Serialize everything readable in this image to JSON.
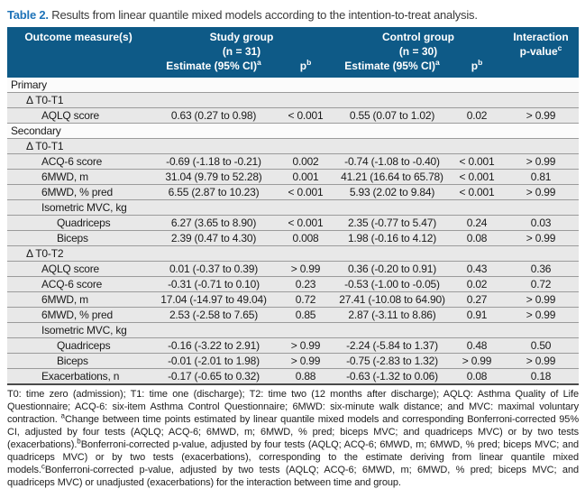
{
  "title": {
    "label": "Table 2.",
    "text": " Results from linear quantile mixed models according to the intention-to-treat analysis."
  },
  "colors": {
    "header_bg": "#0e5a87",
    "title_accent": "#1e73b8",
    "row_bg": "#e8e8e8",
    "section_row_bg": "#fbfbfb",
    "row_divider": "#9b9b9b",
    "table_bottom_border": "#4a4a4a",
    "header_text": "#ffffff"
  },
  "table": {
    "header": {
      "outcome": "Outcome measure(s)",
      "study_group": "Study group",
      "study_n": "(n = 31)",
      "control_group": "Control group",
      "control_n": "(n = 30)",
      "interaction_line1": "Interaction",
      "interaction_line2": "p-value",
      "interaction_sup": "c",
      "estimate_label": "Estimate (95% CI)",
      "estimate_sup": "a",
      "p_label": "p",
      "p_sup": "b"
    },
    "rows": [
      {
        "type": "section",
        "indent": 0,
        "label": "Primary",
        "est1": "",
        "p1": "",
        "est2": "",
        "p2": "",
        "pint": ""
      },
      {
        "type": "sub",
        "indent": 1,
        "label": "Δ T0-T1",
        "est1": "",
        "p1": "",
        "est2": "",
        "p2": "",
        "pint": ""
      },
      {
        "type": "data",
        "indent": 2,
        "label": "AQLQ score",
        "est1": "0.63 (0.27 to 0.98)",
        "p1": "< 0.001",
        "est2": "0.55 (0.07 to 1.02)",
        "p2": "0.02",
        "pint": "> 0.99"
      },
      {
        "type": "section",
        "indent": 0,
        "label": "Secondary",
        "est1": "",
        "p1": "",
        "est2": "",
        "p2": "",
        "pint": ""
      },
      {
        "type": "sub",
        "indent": 1,
        "label": "Δ T0-T1",
        "est1": "",
        "p1": "",
        "est2": "",
        "p2": "",
        "pint": ""
      },
      {
        "type": "data",
        "indent": 2,
        "label": "ACQ-6 score",
        "est1": "-0.69 (-1.18 to -0.21)",
        "p1": "0.002",
        "est2": "-0.74 (-1.08 to -0.40)",
        "p2": "< 0.001",
        "pint": "> 0.99"
      },
      {
        "type": "data",
        "indent": 2,
        "label": "6MWD, m",
        "est1": "31.04 (9.79 to 52.28)",
        "p1": "0.001",
        "est2": "41.21 (16.64 to 65.78)",
        "p2": "< 0.001",
        "pint": "0.81"
      },
      {
        "type": "data",
        "indent": 2,
        "label": "6MWD, % pred",
        "est1": "6.55 (2.87 to 10.23)",
        "p1": "< 0.001",
        "est2": "5.93 (2.02 to 9.84)",
        "p2": "< 0.001",
        "pint": "> 0.99"
      },
      {
        "type": "sub",
        "indent": 2,
        "label": "Isometric MVC, kg",
        "est1": "",
        "p1": "",
        "est2": "",
        "p2": "",
        "pint": ""
      },
      {
        "type": "data",
        "indent": 3,
        "label": "Quadriceps",
        "est1": "6.27 (3.65 to 8.90)",
        "p1": "< 0.001",
        "est2": "2.35 (-0.77 to 5.47)",
        "p2": "0.24",
        "pint": "0.03"
      },
      {
        "type": "data",
        "indent": 3,
        "label": "Biceps",
        "est1": "2.39 (0.47 to 4.30)",
        "p1": "0.008",
        "est2": "1.98 (-0.16 to 4.12)",
        "p2": "0.08",
        "pint": "> 0.99"
      },
      {
        "type": "sub",
        "indent": 1,
        "label": "Δ T0-T2",
        "est1": "",
        "p1": "",
        "est2": "",
        "p2": "",
        "pint": ""
      },
      {
        "type": "data",
        "indent": 2,
        "label": "AQLQ score",
        "est1": "0.01 (-0.37 to 0.39)",
        "p1": "> 0.99",
        "est2": "0.36 (-0.20 to 0.91)",
        "p2": "0.43",
        "pint": "0.36"
      },
      {
        "type": "data",
        "indent": 2,
        "label": "ACQ-6 score",
        "est1": "-0.31 (-0.71 to 0.10)",
        "p1": "0.23",
        "est2": "-0.53 (-1.00 to -0.05)",
        "p2": "0.02",
        "pint": "0.72"
      },
      {
        "type": "data",
        "indent": 2,
        "label": "6MWD, m",
        "est1": "17.04 (-14.97 to 49.04)",
        "p1": "0.72",
        "est2": "27.41 (-10.08 to 64.90)",
        "p2": "0.27",
        "pint": "> 0.99"
      },
      {
        "type": "data",
        "indent": 2,
        "label": "6MWD, % pred",
        "est1": "2.53 (-2.58 to 7.65)",
        "p1": "0.85",
        "est2": "2.87 (-3.11 to 8.86)",
        "p2": "0.91",
        "pint": "> 0.99"
      },
      {
        "type": "sub",
        "indent": 2,
        "label": "Isometric MVC, kg",
        "est1": "",
        "p1": "",
        "est2": "",
        "p2": "",
        "pint": ""
      },
      {
        "type": "data",
        "indent": 3,
        "label": "Quadriceps",
        "est1": "-0.16 (-3.22 to 2.91)",
        "p1": "> 0.99",
        "est2": "-2.24 (-5.84 to 1.37)",
        "p2": "0.48",
        "pint": "0.50"
      },
      {
        "type": "data",
        "indent": 3,
        "label": "Biceps",
        "est1": "-0.01 (-2.01 to 1.98)",
        "p1": "> 0.99",
        "est2": "-0.75 (-2.83 to 1.32)",
        "p2": "> 0.99",
        "pint": "> 0.99"
      },
      {
        "type": "data",
        "indent": 2,
        "label": "Exacerbations, n",
        "est1": "-0.17 (-0.65 to 0.32)",
        "p1": "0.88",
        "est2": "-0.63 (-1.32 to 0.06)",
        "p2": "0.08",
        "pint": "0.18"
      }
    ]
  },
  "footnote": {
    "parts": [
      {
        "t": "T0: time zero (admission); T1: time one (discharge); T2: time two (12 months after discharge); AQLQ: Asthma Quality of Life Questionnaire; ACQ-6: six-item Asthma Control Questionnaire; 6MWD: six-minute walk distance; and MVC: maximal voluntary contraction. "
      },
      {
        "sup": "a"
      },
      {
        "t": "Change between time points estimated by linear quantile mixed models and corresponding Bonferroni-corrected 95% CI, adjusted by four tests (AQLQ; ACQ-6; 6MWD, m; 6MWD, % pred; biceps MVC; and quadriceps MVC) or by two tests (exacerbations)."
      },
      {
        "sup": "b"
      },
      {
        "t": "Bonferroni-corrected p-value, adjusted by four tests (AQLQ; ACQ-6; 6MWD, m; 6MWD, % pred; biceps MVC; and quadriceps MVC) or by two tests (exacerbations), corresponding to the estimate deriving from linear quantile mixed models."
      },
      {
        "sup": "c"
      },
      {
        "t": "Bonferroni-corrected p-value, adjusted by two tests (AQLQ; ACQ-6; 6MWD, m; 6MWD, % pred; biceps MVC; and quadriceps MVC) or unadjusted (exacerbations) for the interaction between time and group."
      }
    ]
  }
}
